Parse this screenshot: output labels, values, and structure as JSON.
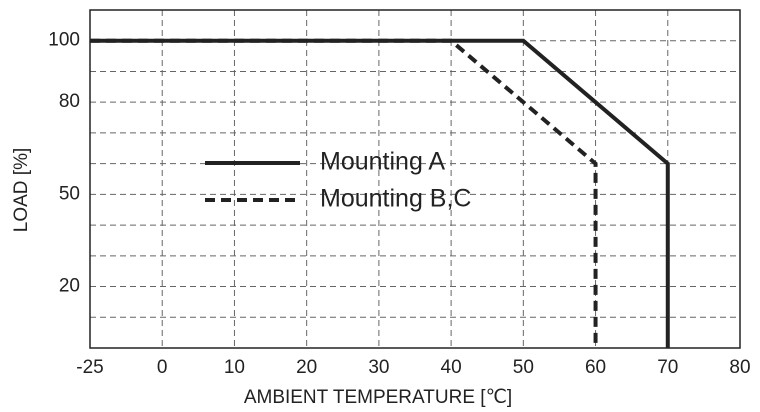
{
  "chart_data": {
    "type": "line",
    "xlabel": "AMBIENT TEMPERATURE [℃]",
    "ylabel": "LOAD [%]",
    "series": [
      {
        "name": "Mounting A",
        "color": "#222222",
        "dash": "solid",
        "x": [
          -25,
          50,
          70,
          70
        ],
        "values": [
          100,
          100,
          60,
          0
        ]
      },
      {
        "name": "Mounting B,C",
        "color": "#222222",
        "dash": "dashed",
        "x": [
          -25,
          40,
          60,
          60
        ],
        "values": [
          100,
          100,
          60,
          0
        ]
      }
    ],
    "xlim": [
      -25,
      80
    ],
    "xticks": [
      -25,
      0,
      10,
      20,
      30,
      40,
      50,
      60,
      70,
      80
    ],
    "ylim": [
      0,
      110
    ],
    "yticks": [
      20,
      50,
      80,
      100
    ],
    "yminorticks": [
      10,
      30,
      40,
      60,
      70,
      90
    ],
    "grid": true
  }
}
